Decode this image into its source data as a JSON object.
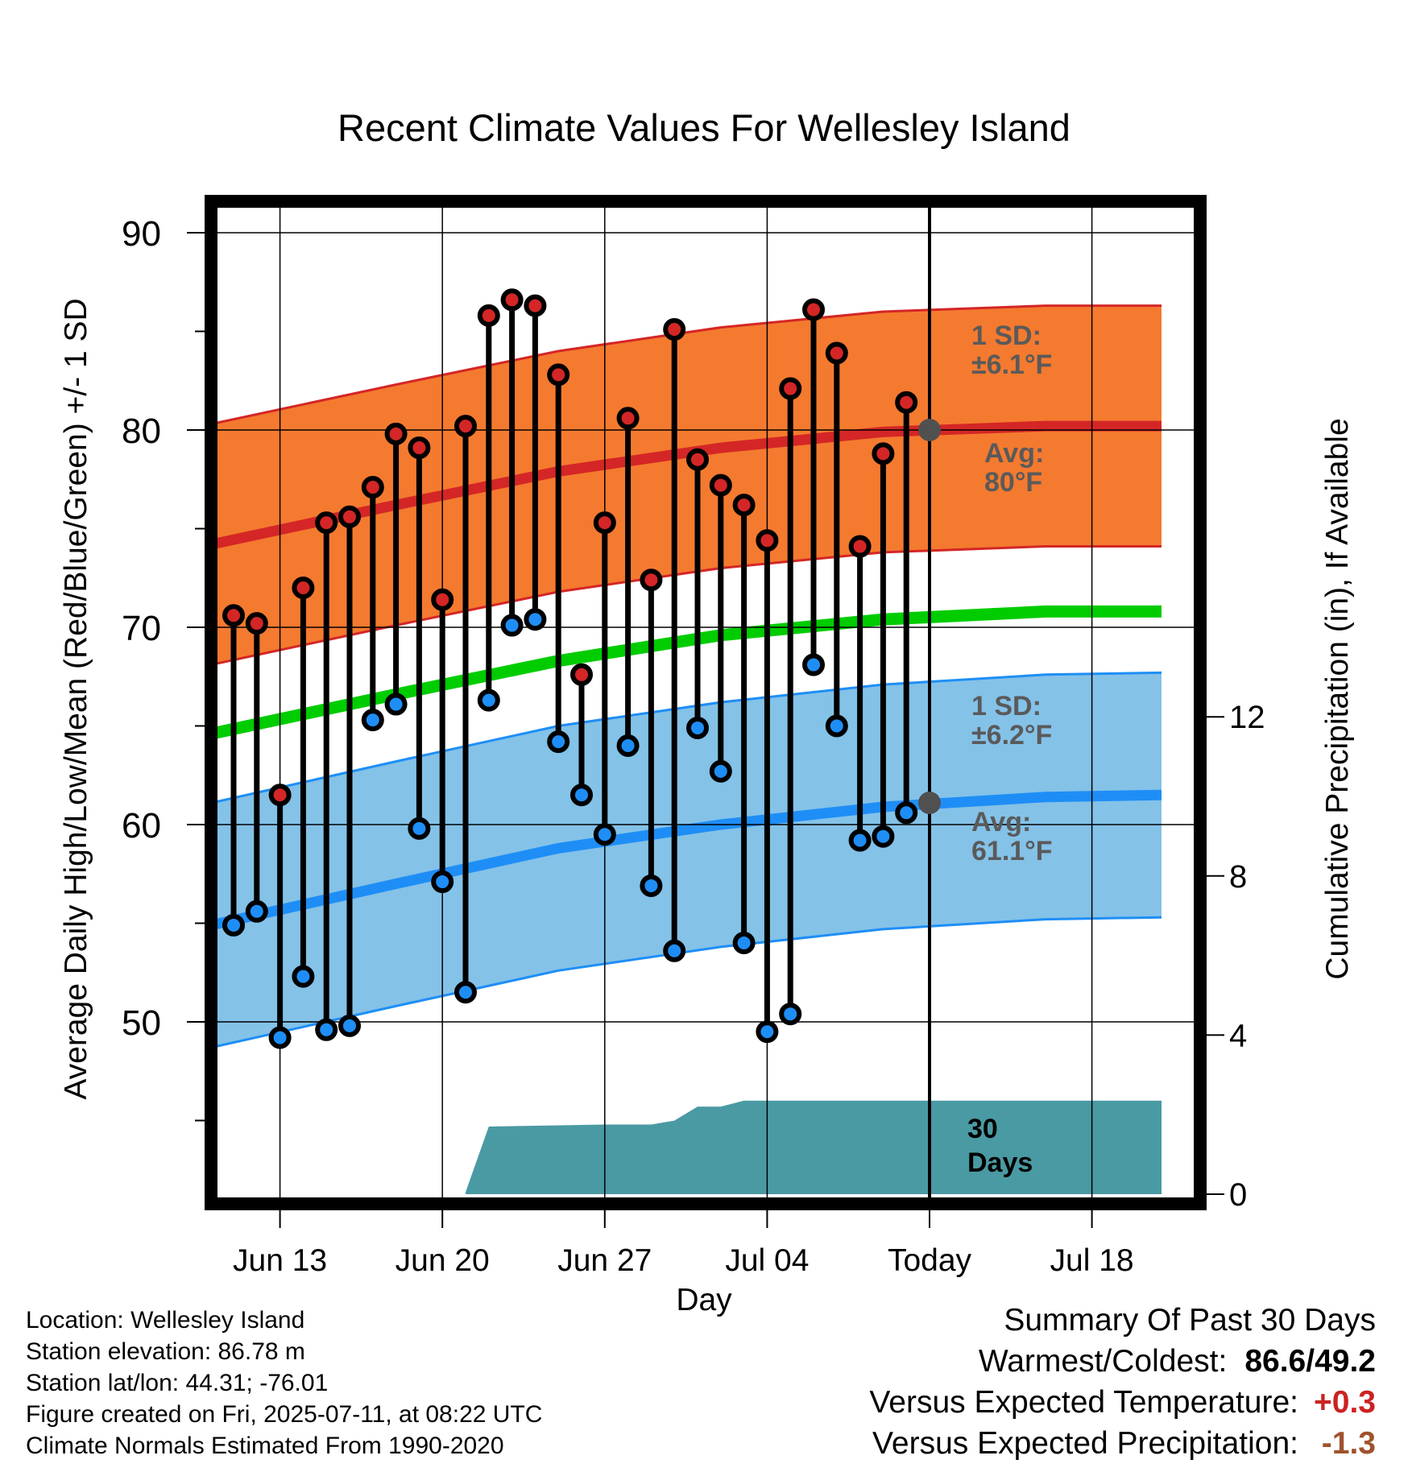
{
  "chart_data": {
    "type": "line",
    "title": "Recent Climate Values For Wellesley Island",
    "xlabel": "Day",
    "ylabel": "Average Daily High/Low/Mean (Red/Blue/Green) +/- 1 SD",
    "y2label": "Cumulative Precipitation (in), If Available",
    "ylim": [
      40.5,
      92
    ],
    "y2lim": [
      0,
      24.5
    ],
    "x_tick_labels": [
      "Jun 13",
      "Jun 20",
      "Jun 27",
      "Jul 04",
      "Today",
      "Jul 18"
    ],
    "y_ticks": [
      50,
      60,
      70,
      80,
      90
    ],
    "y2_ticks": [
      0,
      4,
      8,
      12
    ],
    "grid": true,
    "days": [
      "Jun 11",
      "Jun 12",
      "Jun 13",
      "Jun 14",
      "Jun 15",
      "Jun 16",
      "Jun 17",
      "Jun 18",
      "Jun 19",
      "Jun 20",
      "Jun 21",
      "Jun 22",
      "Jun 23",
      "Jun 24",
      "Jun 25",
      "Jun 26",
      "Jun 27",
      "Jun 28",
      "Jun 29",
      "Jun 30",
      "Jul 01",
      "Jul 02",
      "Jul 03",
      "Jul 04",
      "Jul 05",
      "Jul 06",
      "Jul 07",
      "Jul 08",
      "Jul 09",
      "Jul 10"
    ],
    "highs": [
      70.6,
      70.2,
      61.5,
      72.0,
      75.3,
      75.6,
      77.1,
      79.8,
      79.1,
      71.4,
      80.2,
      85.8,
      86.6,
      86.3,
      82.8,
      67.6,
      75.3,
      80.6,
      72.4,
      85.1,
      78.5,
      77.2,
      76.2,
      74.4,
      82.1,
      86.1,
      83.9,
      74.1,
      78.8,
      81.4
    ],
    "lows": [
      54.9,
      55.6,
      49.2,
      52.3,
      49.6,
      49.8,
      65.3,
      66.1,
      59.8,
      57.1,
      51.5,
      66.3,
      70.1,
      70.4,
      64.2,
      61.5,
      59.5,
      64.0,
      56.9,
      53.6,
      64.9,
      62.7,
      54.0,
      49.5,
      50.4,
      68.1,
      65.0,
      59.2,
      59.4,
      60.6
    ],
    "normals": {
      "days": [
        "Jun 11",
        "Jun 18",
        "Jun 25",
        "Jul 02",
        "Jul 09",
        "Jul 16",
        "Jul 21"
      ],
      "avg_high": [
        74.2,
        76.2,
        77.9,
        79.1,
        79.9,
        80.2,
        80.2
      ],
      "avg_low": [
        54.9,
        57.0,
        58.8,
        60.0,
        60.9,
        61.4,
        61.5
      ],
      "avg_mean": [
        64.6,
        66.6,
        68.3,
        69.6,
        70.4,
        70.8,
        70.8
      ],
      "high_sd": 6.1,
      "low_sd": 6.2
    },
    "precip_cumulative": {
      "days": [
        "Jun 21",
        "Jun 22",
        "Jun 27",
        "Jun 29",
        "Jun 30",
        "Jul 01",
        "Jul 02",
        "Jul 03",
        "Today",
        "Jul 21"
      ],
      "values": [
        0.05,
        1.7,
        1.75,
        1.75,
        1.85,
        2.2,
        2.2,
        2.35,
        2.35,
        2.35
      ]
    },
    "annotations": {
      "high_sd_label": "1 SD:\n±6.1°F",
      "high_avg_label": "Avg:\n80°F",
      "low_sd_label": "1 SD:\n±6.2°F",
      "low_avg_label": "Avg:\n61.1°F",
      "period_label": "30\nDays"
    },
    "colors": {
      "high_band": "#f47a2f",
      "high_line": "#d42626",
      "low_band": "#84c2e8",
      "low_line": "#1e8ef6",
      "mean_line": "#00cc00",
      "precip": "#4a9aa3",
      "high_marker": "#d42626",
      "low_marker": "#1e8ef6",
      "annotation_text": "#5a5a5a",
      "today_marker": "#505050"
    }
  },
  "meta": {
    "location": "Location: Wellesley Island",
    "elevation": "Station elevation: 86.78 m",
    "latlon": "Station lat/lon: 44.31; -76.01",
    "created": "Figure created on Fri, 2025-07-11, at 08:22 UTC",
    "normals": "Climate Normals Estimated From 1990-2020"
  },
  "summary": {
    "title": "Summary Of Past 30 Days",
    "warm_cold_label": "Warmest/Coldest:",
    "warm_cold_value": "86.6/49.2",
    "temp_label": "Versus Expected Temperature:",
    "temp_value": "+0.3",
    "temp_color": "#cc2222",
    "precip_label": "Versus Expected Precipitation:",
    "precip_value": "-1.3",
    "precip_color": "#a0522d"
  }
}
